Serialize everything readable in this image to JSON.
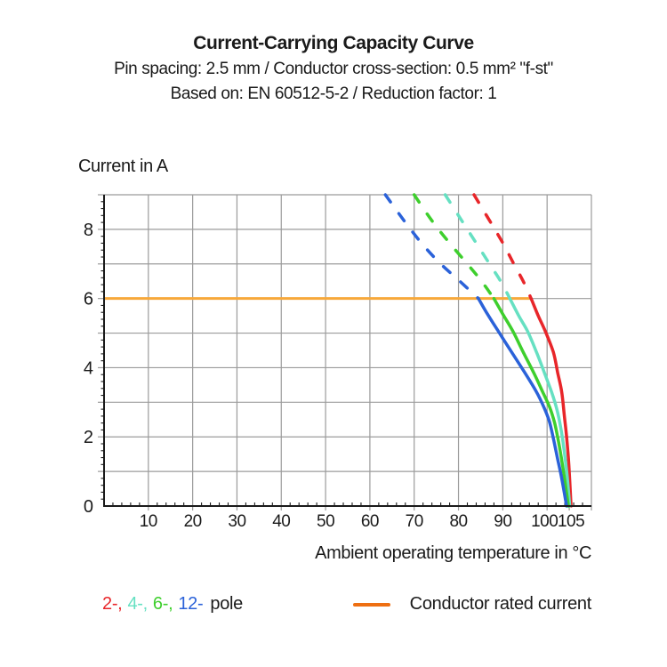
{
  "header": {
    "title": "Current-Carrying Capacity Curve",
    "subtitle_spec": "Pin spacing: 2.5 mm / Conductor cross-section: 0.5 mm² \"f-st\"",
    "subtitle_standard": "Based on: EN 60512-5-2 / Reduction factor: 1"
  },
  "chart_data": {
    "type": "line",
    "title": "Current-Carrying Capacity Curve",
    "xlabel": "Ambient operating temperature in °C",
    "ylabel": "Current in A",
    "xlim": [
      0,
      110
    ],
    "ylim": [
      0,
      9
    ],
    "grid": true,
    "grid_color": "#9b9b9b",
    "axis_color": "#1a1a1a",
    "x_gridlines": [
      10,
      20,
      30,
      40,
      50,
      60,
      70,
      80,
      90,
      100,
      110
    ],
    "y_gridlines": [
      1,
      2,
      3,
      4,
      5,
      6,
      7,
      8,
      9
    ],
    "x_tick_labels": [
      {
        "value": 10
      },
      {
        "value": 20
      },
      {
        "value": 30
      },
      {
        "value": 40
      },
      {
        "value": 50
      },
      {
        "value": 60
      },
      {
        "value": 70
      },
      {
        "value": 80
      },
      {
        "value": 90
      },
      {
        "value": 100,
        "dx": -3
      },
      {
        "value": 105,
        "dx": 2
      }
    ],
    "y_tick_labels": [
      0,
      2,
      4,
      6,
      8
    ],
    "x_minor_tick_step": 2,
    "y_minor_tick_step": 0.2,
    "rated_current": {
      "label": "Conductor rated current",
      "value_a": 6,
      "x_start": 0,
      "x_end": 96.5,
      "color": "#f7a83a"
    },
    "series": [
      {
        "name": "2-pole",
        "color": "#e8262a",
        "dashed_points": [
          [
            83.5,
            9.0
          ],
          [
            86.8,
            8.3
          ],
          [
            89.8,
            7.65
          ],
          [
            92.5,
            7.0
          ],
          [
            94.6,
            6.5
          ],
          [
            96.4,
            6.0
          ]
        ],
        "solid_points": [
          [
            96.4,
            6.0
          ],
          [
            98.0,
            5.5
          ],
          [
            99.6,
            5.05
          ],
          [
            101.4,
            4.45
          ],
          [
            102.4,
            3.85
          ],
          [
            103.3,
            3.3
          ],
          [
            103.9,
            2.6
          ],
          [
            104.4,
            2.0
          ],
          [
            104.9,
            1.2
          ],
          [
            105.4,
            0.0
          ]
        ]
      },
      {
        "name": "4-pole",
        "color": "#66e0c2",
        "dashed_points": [
          [
            77.0,
            9.0
          ],
          [
            80.5,
            8.3
          ],
          [
            84.0,
            7.6
          ],
          [
            87.0,
            7.0
          ],
          [
            89.5,
            6.5
          ],
          [
            91.6,
            6.0
          ]
        ],
        "solid_points": [
          [
            91.6,
            6.0
          ],
          [
            93.6,
            5.5
          ],
          [
            95.6,
            5.05
          ],
          [
            97.6,
            4.45
          ],
          [
            99.4,
            3.85
          ],
          [
            101.0,
            3.3
          ],
          [
            102.2,
            2.8
          ],
          [
            103.1,
            2.25
          ],
          [
            103.8,
            1.65
          ],
          [
            104.5,
            0.9
          ],
          [
            105.1,
            0.0
          ]
        ]
      },
      {
        "name": "6-pole",
        "color": "#3ecf2d",
        "dashed_points": [
          [
            70.0,
            9.0
          ],
          [
            74.0,
            8.25
          ],
          [
            78.0,
            7.6
          ],
          [
            82.0,
            7.0
          ],
          [
            85.2,
            6.5
          ],
          [
            88.0,
            6.0
          ]
        ],
        "solid_points": [
          [
            88.0,
            6.0
          ],
          [
            90.0,
            5.55
          ],
          [
            92.3,
            5.05
          ],
          [
            94.6,
            4.45
          ],
          [
            97.0,
            3.85
          ],
          [
            99.0,
            3.3
          ],
          [
            100.6,
            2.85
          ],
          [
            101.7,
            2.4
          ],
          [
            102.6,
            1.85
          ],
          [
            103.4,
            1.25
          ],
          [
            104.1,
            0.65
          ],
          [
            104.8,
            0.0
          ]
        ]
      },
      {
        "name": "12-pole",
        "color": "#2b62d9",
        "dashed_points": [
          [
            63.5,
            9.0
          ],
          [
            68.0,
            8.2
          ],
          [
            72.0,
            7.55
          ],
          [
            76.0,
            7.0
          ],
          [
            80.3,
            6.5
          ],
          [
            84.5,
            6.0
          ]
        ],
        "solid_points": [
          [
            84.5,
            6.0
          ],
          [
            86.3,
            5.6
          ],
          [
            89.0,
            5.05
          ],
          [
            92.0,
            4.45
          ],
          [
            95.0,
            3.85
          ],
          [
            97.6,
            3.3
          ],
          [
            99.3,
            2.85
          ],
          [
            100.5,
            2.45
          ],
          [
            101.5,
            1.9
          ],
          [
            102.4,
            1.35
          ],
          [
            103.3,
            0.8
          ],
          [
            104.4,
            0.0
          ]
        ]
      }
    ],
    "legend_position": "bottom"
  },
  "legend": {
    "pole_items": [
      {
        "label": "2-,",
        "color": "#e8262a"
      },
      {
        "label": "4-,",
        "color": "#66e0c2"
      },
      {
        "label": "6-,",
        "color": "#3ecf2d"
      },
      {
        "label": "12-",
        "color": "#2b62d9"
      }
    ],
    "pole_suffix": "pole",
    "rated_label": "Conductor rated current",
    "rated_color": "#ee6f12"
  }
}
